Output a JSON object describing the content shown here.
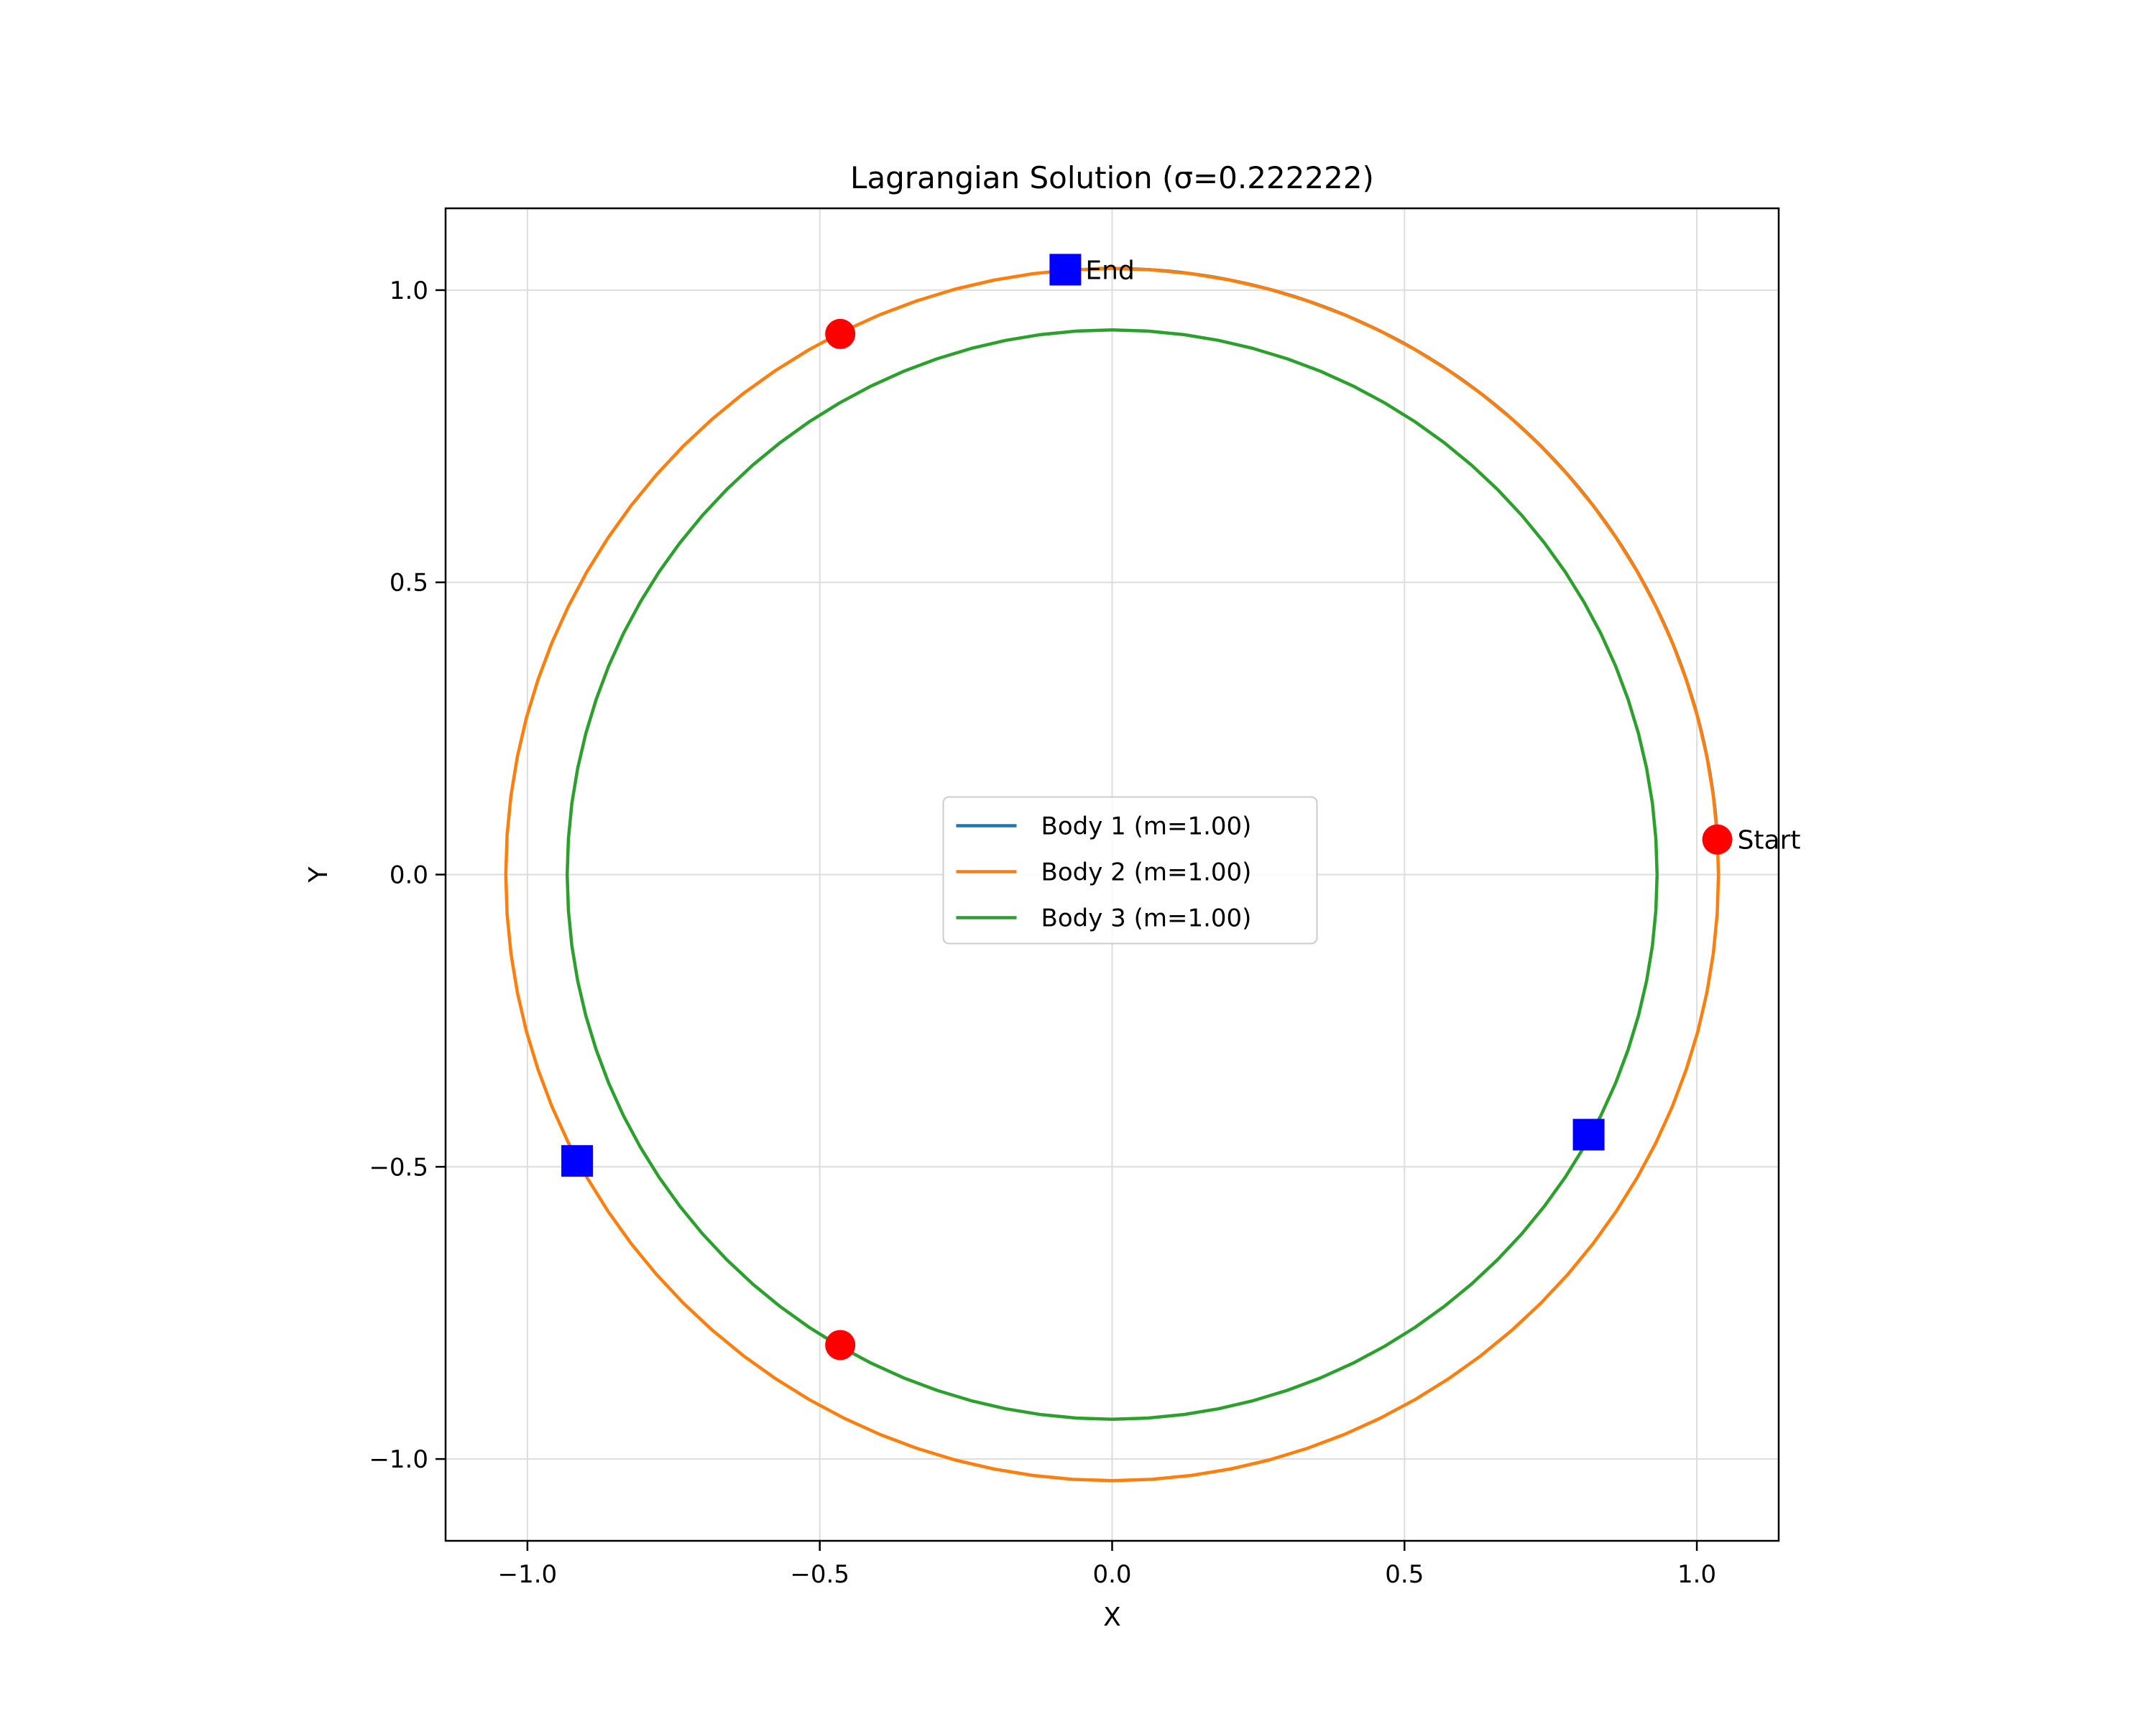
{
  "chart_data": {
    "type": "line",
    "title": "Lagrangian Solution (σ=0.222222)",
    "xlabel": "X",
    "ylabel": "Y",
    "xlim": [
      -1.14,
      1.14
    ],
    "ylim": [
      -1.14,
      1.14
    ],
    "xticks": [
      -1.0,
      -0.5,
      0.0,
      0.5,
      1.0
    ],
    "yticks": [
      -1.0,
      -0.5,
      0.0,
      0.5,
      1.0
    ],
    "xtick_labels": [
      "−1.0",
      "−0.5",
      "0.0",
      "0.5",
      "1.0"
    ],
    "ytick_labels": [
      "−1.0",
      "−0.5",
      "0.0",
      "0.5",
      "1.0"
    ],
    "grid": true,
    "legend_position": "center",
    "series": [
      {
        "name": "Body 1 (m=1.00)",
        "color": "#1f77b4",
        "shape": "circle",
        "radius": 1.037,
        "theta_start_deg": 3.3,
        "theta_end_deg": 92.0
      },
      {
        "name": "Body 2 (m=1.00)",
        "color": "#ff7f0e",
        "shape": "circle",
        "radius": 1.037,
        "theta_start_deg": 0,
        "theta_end_deg": 360
      },
      {
        "name": "Body 3 (m=1.00)",
        "color": "#2ca02c",
        "shape": "circle",
        "radius": 0.932,
        "theta_start_deg": 0,
        "theta_end_deg": 360
      }
    ],
    "start_markers": {
      "color": "#ff0000",
      "points": [
        [
          1.035,
          0.06
        ],
        [
          -0.465,
          0.925
        ],
        [
          -0.465,
          -0.805
        ]
      ]
    },
    "end_markers": {
      "color": "#0000ff",
      "points": [
        [
          -0.08,
          1.035
        ],
        [
          -0.915,
          -0.49
        ],
        [
          0.815,
          -0.445
        ]
      ]
    },
    "annotations": [
      {
        "text": "Start",
        "x": 1.035,
        "y": 0.06
      },
      {
        "text": "End",
        "x": -0.08,
        "y": 1.035
      }
    ]
  }
}
